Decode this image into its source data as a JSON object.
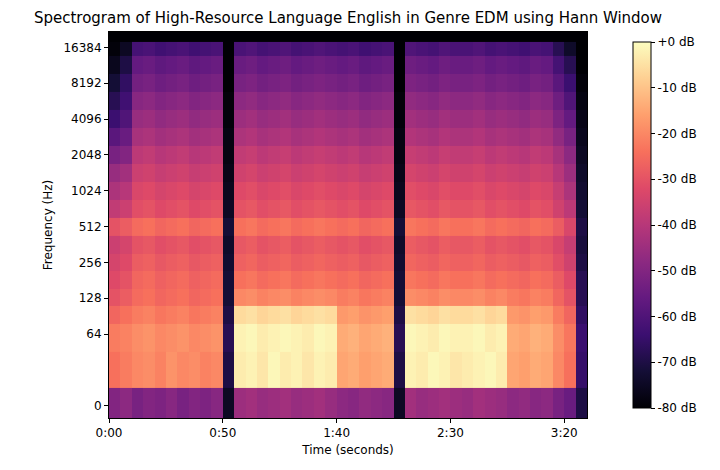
{
  "chart_data": {
    "type": "heatmap",
    "title": "Spectrogram of High-Resource Language English in Genre EDM using Hann Window",
    "x_label": "Time (seconds)",
    "y_label": "Frequency (Hz)",
    "log": "y",
    "xlim": [
      0,
      210
    ],
    "xticks": [
      {
        "value": 0,
        "label": "0:00"
      },
      {
        "value": 50,
        "label": "0:50"
      },
      {
        "value": 100,
        "label": "1:40"
      },
      {
        "value": 150,
        "label": "2:30"
      },
      {
        "value": 200,
        "label": "3:20"
      }
    ],
    "ylim": [
      -11,
      22050
    ],
    "yticks": [
      0,
      64,
      128,
      256,
      512,
      1024,
      2048,
      4096,
      8192,
      16384
    ],
    "colorbar": {
      "lim": [
        -80,
        0
      ],
      "ticks": [
        {
          "value": 0,
          "label": "+0 dB"
        },
        {
          "value": -10,
          "label": "-10 dB"
        },
        {
          "value": -20,
          "label": "-20 dB"
        },
        {
          "value": -30,
          "label": "-30 dB"
        },
        {
          "value": -40,
          "label": "-40 dB"
        },
        {
          "value": -50,
          "label": "-50 dB"
        },
        {
          "value": -60,
          "label": "-60 dB"
        },
        {
          "value": -70,
          "label": "-70 dB"
        },
        {
          "value": -80,
          "label": "-80 dB"
        }
      ]
    },
    "x": [
      2.5,
      7.5,
      12.5,
      17.5,
      22.5,
      27.5,
      32.5,
      37.5,
      42.5,
      47.5,
      52.5,
      57.5,
      62.5,
      67.5,
      72.5,
      77.5,
      82.5,
      87.5,
      92.5,
      97.5,
      102.5,
      107.5,
      112.5,
      117.5,
      122.5,
      127.5,
      132.5,
      137.5,
      142.5,
      147.5,
      152.5,
      157.5,
      162.5,
      167.5,
      172.5,
      177.5,
      182.5,
      187.5,
      192.5,
      197.5,
      202.5,
      207.5
    ],
    "y": [
      0,
      32,
      64,
      96,
      128,
      181,
      256,
      362,
      512,
      724,
      1024,
      1448,
      2048,
      2896,
      4096,
      5793,
      8192,
      11585,
      16384,
      20000
    ],
    "z": [
      [
        -50,
        -48,
        -52,
        -50,
        -51,
        -49,
        -52,
        -50,
        -51,
        -49,
        -75,
        -45,
        -44,
        -46,
        -45,
        -44,
        -46,
        -45,
        -44,
        -46,
        -48,
        -49,
        -47,
        -48,
        -49,
        -75,
        -44,
        -46,
        -45,
        -44,
        -45,
        -46,
        -44,
        -45,
        -46,
        -48,
        -47,
        -49,
        -48,
        -52,
        -55,
        -70
      ],
      [
        -24,
        -22,
        -20,
        -19,
        -21,
        -18,
        -20,
        -19,
        -21,
        -20,
        -70,
        -3,
        -2,
        -4,
        -1,
        -3,
        -2,
        -4,
        -2,
        -3,
        -15,
        -14,
        -16,
        -15,
        -14,
        -70,
        -2,
        -3,
        -1,
        -2,
        -4,
        -3,
        -2,
        -1,
        -3,
        -15,
        -16,
        -14,
        -15,
        -20,
        -24,
        -65
      ],
      [
        -22,
        -21,
        -19,
        -18,
        -20,
        -19,
        -18,
        -20,
        -19,
        -18,
        -68,
        -2,
        -1,
        -3,
        -2,
        -1,
        -2,
        -3,
        -1,
        -2,
        -14,
        -13,
        -15,
        -14,
        -13,
        -68,
        -1,
        -2,
        -3,
        -1,
        -2,
        -2,
        -1,
        -3,
        -2,
        -14,
        -15,
        -13,
        -14,
        -19,
        -23,
        -64
      ],
      [
        -26,
        -24,
        -22,
        -21,
        -23,
        -22,
        -21,
        -23,
        -22,
        -21,
        -70,
        -6,
        -5,
        -7,
        -6,
        -5,
        -7,
        -6,
        -5,
        -6,
        -17,
        -16,
        -18,
        -17,
        -16,
        -70,
        -5,
        -6,
        -7,
        -5,
        -6,
        -6,
        -5,
        -7,
        -6,
        -17,
        -18,
        -16,
        -17,
        -22,
        -26,
        -66
      ],
      [
        -30,
        -28,
        -25,
        -24,
        -26,
        -25,
        -24,
        -26,
        -25,
        -24,
        -72,
        -20,
        -19,
        -21,
        -20,
        -19,
        -21,
        -20,
        -19,
        -20,
        -22,
        -21,
        -23,
        -22,
        -21,
        -72,
        -19,
        -20,
        -21,
        -19,
        -20,
        -20,
        -19,
        -21,
        -20,
        -22,
        -23,
        -21,
        -22,
        -26,
        -30,
        -68
      ],
      [
        -32,
        -30,
        -26,
        -25,
        -27,
        -26,
        -25,
        -27,
        -26,
        -25,
        -72,
        -24,
        -23,
        -25,
        -24,
        -23,
        -25,
        -24,
        -23,
        -24,
        -25,
        -24,
        -26,
        -25,
        -24,
        -72,
        -23,
        -24,
        -25,
        -23,
        -24,
        -24,
        -23,
        -25,
        -24,
        -25,
        -26,
        -24,
        -25,
        -28,
        -32,
        -68
      ],
      [
        -34,
        -32,
        -28,
        -27,
        -29,
        -28,
        -27,
        -29,
        -28,
        -27,
        -73,
        -27,
        -26,
        -28,
        -27,
        -26,
        -28,
        -27,
        -26,
        -27,
        -28,
        -27,
        -29,
        -28,
        -27,
        -73,
        -26,
        -27,
        -28,
        -26,
        -27,
        -27,
        -26,
        -28,
        -27,
        -28,
        -29,
        -27,
        -28,
        -31,
        -35,
        -70
      ],
      [
        -36,
        -34,
        -30,
        -29,
        -31,
        -30,
        -29,
        -31,
        -30,
        -29,
        -74,
        -29,
        -28,
        -30,
        -29,
        -28,
        -30,
        -29,
        -28,
        -29,
        -30,
        -29,
        -31,
        -30,
        -29,
        -74,
        -28,
        -29,
        -30,
        -28,
        -29,
        -29,
        -28,
        -30,
        -29,
        -30,
        -31,
        -29,
        -30,
        -33,
        -37,
        -71
      ],
      [
        -30,
        -28,
        -25,
        -24,
        -26,
        -25,
        -24,
        -26,
        -25,
        -24,
        -72,
        -24,
        -23,
        -25,
        -24,
        -23,
        -25,
        -24,
        -23,
        -24,
        -25,
        -24,
        -26,
        -25,
        -24,
        -72,
        -23,
        -24,
        -25,
        -23,
        -24,
        -24,
        -23,
        -25,
        -24,
        -25,
        -26,
        -24,
        -25,
        -28,
        -33,
        -70
      ],
      [
        -38,
        -36,
        -31,
        -30,
        -32,
        -31,
        -30,
        -32,
        -31,
        -30,
        -75,
        -30,
        -29,
        -31,
        -30,
        -29,
        -31,
        -30,
        -29,
        -30,
        -31,
        -30,
        -32,
        -31,
        -30,
        -75,
        -29,
        -30,
        -31,
        -29,
        -30,
        -30,
        -29,
        -31,
        -30,
        -31,
        -32,
        -30,
        -31,
        -35,
        -39,
        -72
      ],
      [
        -42,
        -40,
        -33,
        -32,
        -34,
        -33,
        -32,
        -34,
        -33,
        -32,
        -76,
        -32,
        -31,
        -33,
        -32,
        -31,
        -33,
        -32,
        -31,
        -32,
        -33,
        -32,
        -34,
        -33,
        -32,
        -76,
        -31,
        -32,
        -33,
        -31,
        -32,
        -32,
        -31,
        -33,
        -32,
        -33,
        -34,
        -32,
        -33,
        -37,
        -42,
        -73
      ],
      [
        -46,
        -44,
        -36,
        -35,
        -37,
        -36,
        -35,
        -37,
        -36,
        -35,
        -77,
        -35,
        -34,
        -36,
        -35,
        -34,
        -36,
        -35,
        -34,
        -35,
        -36,
        -35,
        -37,
        -36,
        -35,
        -77,
        -34,
        -35,
        -36,
        -34,
        -35,
        -35,
        -34,
        -36,
        -35,
        -36,
        -37,
        -35,
        -36,
        -40,
        -45,
        -74
      ],
      [
        -52,
        -50,
        -39,
        -38,
        -40,
        -39,
        -38,
        -40,
        -39,
        -38,
        -78,
        -38,
        -37,
        -39,
        -38,
        -37,
        -39,
        -38,
        -37,
        -38,
        -39,
        -38,
        -40,
        -39,
        -38,
        -78,
        -37,
        -38,
        -39,
        -37,
        -38,
        -38,
        -37,
        -39,
        -38,
        -39,
        -40,
        -38,
        -39,
        -43,
        -48,
        -75
      ],
      [
        -58,
        -55,
        -43,
        -42,
        -44,
        -43,
        -42,
        -44,
        -43,
        -42,
        -78,
        -42,
        -41,
        -43,
        -42,
        -41,
        -43,
        -42,
        -41,
        -42,
        -43,
        -42,
        -44,
        -43,
        -42,
        -78,
        -41,
        -42,
        -43,
        -41,
        -42,
        -42,
        -41,
        -43,
        -42,
        -43,
        -44,
        -42,
        -43,
        -47,
        -52,
        -76
      ],
      [
        -64,
        -60,
        -46,
        -45,
        -47,
        -46,
        -45,
        -47,
        -46,
        -45,
        -79,
        -45,
        -44,
        -46,
        -45,
        -44,
        -46,
        -45,
        -44,
        -45,
        -46,
        -45,
        -47,
        -46,
        -45,
        -79,
        -44,
        -45,
        -46,
        -44,
        -45,
        -45,
        -44,
        -46,
        -45,
        -46,
        -47,
        -45,
        -46,
        -51,
        -56,
        -77
      ],
      [
        -68,
        -63,
        -49,
        -48,
        -50,
        -49,
        -48,
        -50,
        -49,
        -48,
        -79,
        -48,
        -47,
        -49,
        -48,
        -47,
        -49,
        -48,
        -47,
        -48,
        -49,
        -48,
        -50,
        -49,
        -48,
        -79,
        -47,
        -48,
        -49,
        -47,
        -48,
        -48,
        -47,
        -49,
        -48,
        -49,
        -50,
        -48,
        -49,
        -54,
        -60,
        -78
      ],
      [
        -72,
        -66,
        -53,
        -52,
        -54,
        -53,
        -52,
        -54,
        -53,
        -52,
        -80,
        -52,
        -51,
        -53,
        -52,
        -51,
        -53,
        -52,
        -51,
        -52,
        -53,
        -52,
        -54,
        -53,
        -52,
        -80,
        -51,
        -52,
        -53,
        -51,
        -52,
        -52,
        -51,
        -53,
        -52,
        -53,
        -54,
        -52,
        -53,
        -58,
        -64,
        -79
      ],
      [
        -76,
        -70,
        -56,
        -55,
        -57,
        -56,
        -55,
        -57,
        -56,
        -55,
        -80,
        -55,
        -54,
        -56,
        -55,
        -54,
        -56,
        -55,
        -54,
        -55,
        -56,
        -55,
        -57,
        -56,
        -55,
        -80,
        -54,
        -55,
        -56,
        -54,
        -55,
        -55,
        -54,
        -56,
        -55,
        -56,
        -57,
        -55,
        -56,
        -62,
        -68,
        -80
      ],
      [
        -79,
        -75,
        -62,
        -61,
        -63,
        -62,
        -61,
        -63,
        -62,
        -61,
        -80,
        -61,
        -60,
        -62,
        -61,
        -60,
        -62,
        -61,
        -60,
        -61,
        -62,
        -61,
        -63,
        -62,
        -61,
        -80,
        -60,
        -61,
        -62,
        -60,
        -61,
        -61,
        -60,
        -62,
        -61,
        -62,
        -63,
        -61,
        -62,
        -68,
        -74,
        -80
      ],
      [
        -80,
        -80,
        -80,
        -80,
        -80,
        -80,
        -80,
        -80,
        -80,
        -80,
        -80,
        -80,
        -80,
        -80,
        -80,
        -80,
        -80,
        -80,
        -80,
        -80,
        -80,
        -80,
        -80,
        -80,
        -80,
        -80,
        -80,
        -80,
        -80,
        -80,
        -80,
        -80,
        -80,
        -80,
        -80,
        -80,
        -80,
        -80,
        -80,
        -80,
        -80,
        -80
      ]
    ]
  }
}
